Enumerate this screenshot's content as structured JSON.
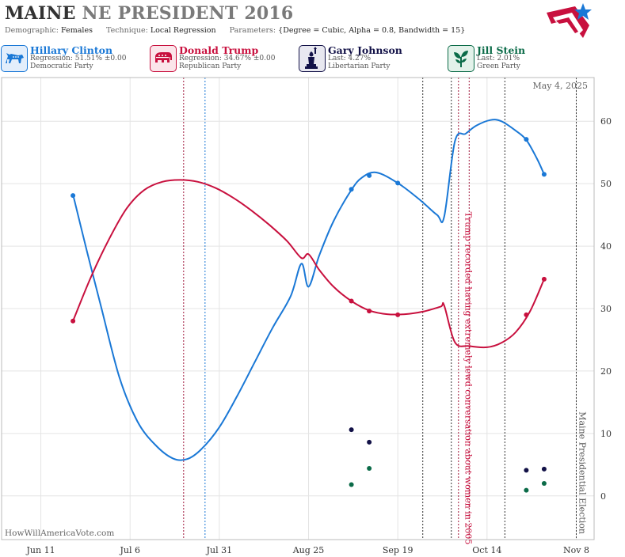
{
  "header": {
    "state": "MAINE",
    "race": "NE PRESIDENT 2016",
    "demographic_label": "Demographic:",
    "demographic": "Females",
    "technique_label": "Technique:",
    "technique": "Local Regression",
    "parameters_label": "Parameters:",
    "parameters": "{Degree = Cubic, Alpha = 0.8, Bandwidth = 15}"
  },
  "candidates": [
    {
      "name": "Hillary Clinton",
      "stat": "Regression: 51.51% ±0.00",
      "party": "Democratic Party",
      "color": "#1a78d6",
      "icon": "donkey-icon"
    },
    {
      "name": "Donald Trump",
      "stat": "Regression: 34.67% ±0.00",
      "party": "Republican Party",
      "color": "#c8103e",
      "icon": "elephant-icon"
    },
    {
      "name": "Gary Johnson",
      "stat": "Last: 4.27%",
      "party": "Libertarian Party",
      "color": "#121147",
      "icon": "statue-of-liberty-icon"
    },
    {
      "name": "Jill Stein",
      "stat": "Last: 2.01%",
      "party": "Green Party",
      "color": "#0b6b48",
      "icon": "green-plant-icon"
    }
  ],
  "chart_data": {
    "type": "line",
    "date_label": "May 4, 2025",
    "credit": "HowWillAmericaVote.com",
    "x_ticks": [
      {
        "label": "Jun 11",
        "date": "2016-06-11"
      },
      {
        "label": "Jul 6",
        "date": "2016-07-06"
      },
      {
        "label": "Jul 31",
        "date": "2016-07-31"
      },
      {
        "label": "Aug 25",
        "date": "2016-08-25"
      },
      {
        "label": "Sep 19",
        "date": "2016-09-19"
      },
      {
        "label": "Oct 14",
        "date": "2016-10-14"
      },
      {
        "label": "Nov 8",
        "date": "2016-11-08"
      }
    ],
    "x_range": [
      "2016-05-31",
      "2016-11-13"
    ],
    "y_ticks": [
      0,
      10,
      20,
      30,
      40,
      50,
      60
    ],
    "y_range": [
      -7,
      67
    ],
    "grid": true,
    "annotations": [
      {
        "text": "Trump recorded having extremely lewd conversation about women in 2005",
        "date": "2016-10-07",
        "color": "#c8103e"
      },
      {
        "text": "Maine Presidential Election",
        "date": "2016-11-08",
        "color": "#555555"
      }
    ],
    "vlines": [
      {
        "date": "2016-07-21",
        "color": "#a0183c"
      },
      {
        "date": "2016-07-27",
        "color": "#1a78d6"
      },
      {
        "date": "2016-09-26",
        "color": "#333333"
      },
      {
        "date": "2016-10-04",
        "color": "#333333"
      },
      {
        "date": "2016-10-06",
        "color": "#a0183c"
      },
      {
        "date": "2016-10-09",
        "color": "#a0183c"
      },
      {
        "date": "2016-10-19",
        "color": "#333333"
      },
      {
        "date": "2016-11-08",
        "color": "#333333"
      }
    ],
    "series": [
      {
        "name": "Hillary Clinton",
        "color": "#1a78d6",
        "curve": [
          [
            "2016-06-20",
            48.3
          ],
          [
            "2016-06-24",
            39
          ],
          [
            "2016-06-28",
            30
          ],
          [
            "2016-07-03",
            19
          ],
          [
            "2016-07-08",
            12
          ],
          [
            "2016-07-13",
            8.2
          ],
          [
            "2016-07-18",
            6
          ],
          [
            "2016-07-22",
            5.9
          ],
          [
            "2016-07-26",
            7.5
          ],
          [
            "2016-07-31",
            11
          ],
          [
            "2016-08-05",
            16
          ],
          [
            "2016-08-10",
            21.5
          ],
          [
            "2016-08-15",
            27
          ],
          [
            "2016-08-20",
            32
          ],
          [
            "2016-08-23",
            37.2
          ],
          [
            "2016-08-25",
            33.5
          ],
          [
            "2016-08-28",
            38.5
          ],
          [
            "2016-09-01",
            44
          ],
          [
            "2016-09-06",
            49
          ],
          [
            "2016-09-09",
            51
          ],
          [
            "2016-09-13",
            51.8
          ],
          [
            "2016-09-19",
            50.1
          ],
          [
            "2016-09-25",
            47.5
          ],
          [
            "2016-09-30",
            45
          ],
          [
            "2016-10-02",
            44.7
          ],
          [
            "2016-10-05",
            56.8
          ],
          [
            "2016-10-08",
            58
          ],
          [
            "2016-10-11",
            59.3
          ],
          [
            "2016-10-15",
            60.2
          ],
          [
            "2016-10-18",
            60
          ],
          [
            "2016-10-22",
            58.5
          ],
          [
            "2016-10-25",
            57
          ],
          [
            "2016-10-28",
            54
          ],
          [
            "2016-10-30",
            51.5
          ]
        ],
        "points": [
          [
            "2016-06-20",
            48.1
          ],
          [
            "2016-09-06",
            49.1
          ],
          [
            "2016-09-11",
            51.3
          ],
          [
            "2016-09-19",
            50.1
          ],
          [
            "2016-10-25",
            57.1
          ],
          [
            "2016-10-30",
            51.5
          ]
        ]
      },
      {
        "name": "Donald Trump",
        "color": "#c8103e",
        "curve": [
          [
            "2016-06-20",
            28
          ],
          [
            "2016-06-25",
            35
          ],
          [
            "2016-06-30",
            41
          ],
          [
            "2016-07-05",
            46
          ],
          [
            "2016-07-10",
            49
          ],
          [
            "2016-07-15",
            50.3
          ],
          [
            "2016-07-20",
            50.6
          ],
          [
            "2016-07-25",
            50.3
          ],
          [
            "2016-07-30",
            49.3
          ],
          [
            "2016-08-04",
            47.7
          ],
          [
            "2016-08-09",
            45.7
          ],
          [
            "2016-08-14",
            43.4
          ],
          [
            "2016-08-19",
            40.8
          ],
          [
            "2016-08-23",
            38.1
          ],
          [
            "2016-08-25",
            38.7
          ],
          [
            "2016-08-28",
            36.2
          ],
          [
            "2016-09-01",
            33.5
          ],
          [
            "2016-09-06",
            31.2
          ],
          [
            "2016-09-11",
            29.7
          ],
          [
            "2016-09-16",
            29.1
          ],
          [
            "2016-09-21",
            29.1
          ],
          [
            "2016-09-26",
            29.5
          ],
          [
            "2016-10-01",
            30.3
          ],
          [
            "2016-10-02",
            30.5
          ],
          [
            "2016-10-05",
            24.6
          ],
          [
            "2016-10-09",
            24
          ],
          [
            "2016-10-14",
            23.8
          ],
          [
            "2016-10-18",
            24.5
          ],
          [
            "2016-10-22",
            26.2
          ],
          [
            "2016-10-26",
            29.5
          ],
          [
            "2016-10-30",
            34.7
          ]
        ],
        "points": [
          [
            "2016-06-20",
            28
          ],
          [
            "2016-09-06",
            31.2
          ],
          [
            "2016-09-11",
            29.6
          ],
          [
            "2016-09-19",
            29
          ],
          [
            "2016-10-25",
            29
          ],
          [
            "2016-10-30",
            34.7
          ]
        ]
      },
      {
        "name": "Gary Johnson",
        "color": "#121147",
        "points": [
          [
            "2016-09-06",
            10.6
          ],
          [
            "2016-09-11",
            8.6
          ],
          [
            "2016-10-25",
            4.1
          ],
          [
            "2016-10-30",
            4.3
          ]
        ]
      },
      {
        "name": "Jill Stein",
        "color": "#0b6b48",
        "points": [
          [
            "2016-09-06",
            1.8
          ],
          [
            "2016-09-11",
            4.4
          ],
          [
            "2016-10-25",
            0.9
          ],
          [
            "2016-10-30",
            2
          ]
        ]
      }
    ]
  }
}
